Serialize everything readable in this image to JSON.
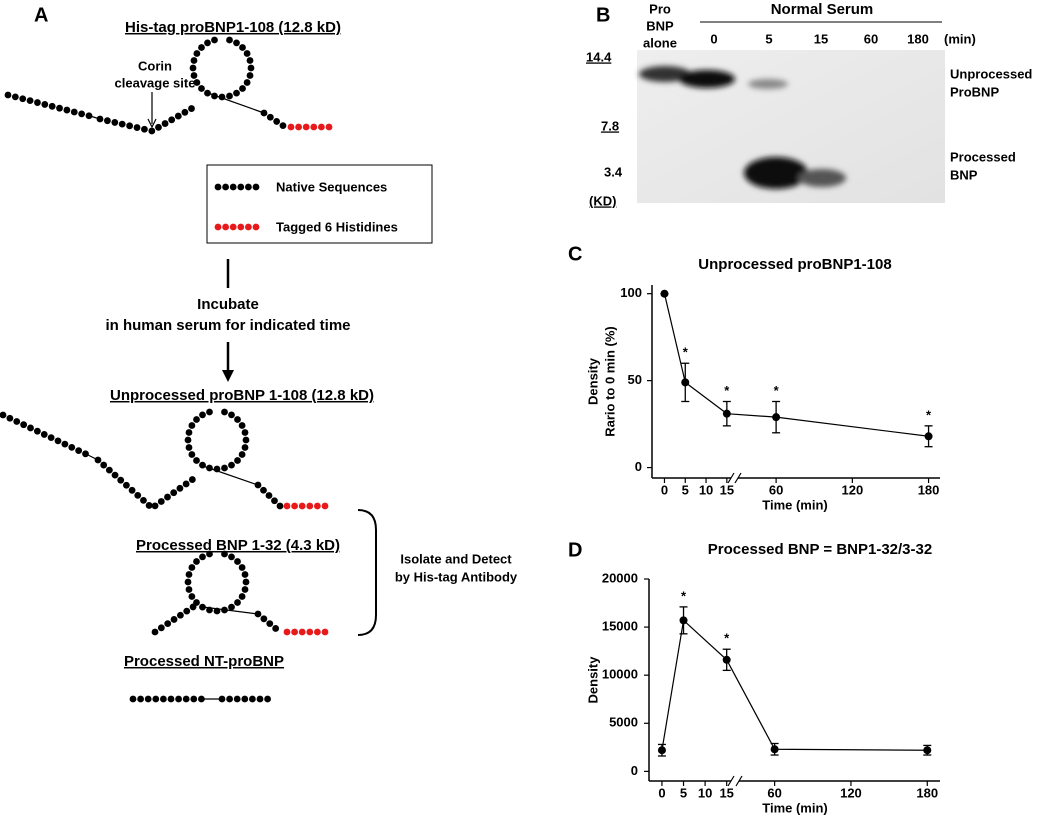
{
  "panel_a": {
    "label": "A",
    "title": "His-tag proBNP1-108 (12.8 kD)",
    "site_label": [
      "Corin",
      "cleavage site"
    ],
    "legend": [
      "Native Sequences",
      "Tagged 6 Histidines"
    ],
    "step": [
      "Incubate",
      "in human serum for indicated time"
    ],
    "products": [
      "Unprocessed proBNP 1-108 (12.8 kD)",
      "Processed BNP 1-32 (4.3 kD)",
      "Processed NT-proBNP"
    ],
    "detect": [
      "Isolate and Detect",
      "by His-tag Antibody"
    ]
  },
  "panel_b": {
    "label": "B",
    "control": [
      "Pro",
      "BNP",
      "alone"
    ],
    "group": "Normal Serum",
    "lanes": [
      "0",
      "5",
      "15",
      "60",
      "180"
    ],
    "unit": "(min)",
    "markers": [
      "14.4",
      "7.8",
      "3.4"
    ],
    "marker_unit": "(KD)",
    "bands": [
      [
        "Unprocessed",
        "ProBNP"
      ],
      [
        "Processed",
        "BNP"
      ]
    ]
  },
  "chart_data": [
    {
      "type": "line",
      "panel": "C",
      "title": "Unprocessed proBNP1-108",
      "x_label": "Time (min)",
      "y_label": [
        "Density",
        "Rario to 0 min (%)"
      ],
      "x": [
        0,
        5,
        15,
        60,
        180
      ],
      "series": [
        {
          "color": "#000000",
          "values": [
            100,
            49,
            31,
            29,
            18
          ],
          "errors": [
            0,
            11,
            7,
            9,
            6
          ]
        }
      ],
      "xlim": [
        [
          -3,
          16
        ],
        [
          30,
          189
        ]
      ],
      "xticks": [
        0,
        5,
        10,
        15,
        60,
        120,
        180
      ],
      "ylim": [
        -6,
        105
      ],
      "yticks": [
        0,
        50,
        100
      ],
      "annotations": [
        {
          "x": 5,
          "text": "*"
        },
        {
          "x": 15,
          "text": "*"
        },
        {
          "x": 60,
          "text": "*"
        },
        {
          "x": 180,
          "text": "*"
        }
      ]
    },
    {
      "type": "line",
      "panel": "D",
      "title": "Processed BNP = BNP1-32/3-32",
      "x_label": "Time (min)",
      "y_label": [
        "Density"
      ],
      "x": [
        0,
        5,
        15,
        60,
        180
      ],
      "series": [
        {
          "color": "#000000",
          "values": [
            2200,
            15700,
            11600,
            2300,
            2200
          ],
          "errors": [
            600,
            1400,
            1100,
            600,
            500
          ]
        }
      ],
      "xlim": [
        [
          -3,
          16
        ],
        [
          32,
          190
        ]
      ],
      "xticks": [
        0,
        5,
        10,
        15,
        60,
        120,
        180
      ],
      "ylim": [
        -1000,
        20000
      ],
      "yticks": [
        0,
        5000,
        10000,
        15000,
        20000
      ],
      "annotations": [
        {
          "x": 5,
          "text": "*"
        },
        {
          "x": 15,
          "text": "*"
        }
      ]
    }
  ]
}
